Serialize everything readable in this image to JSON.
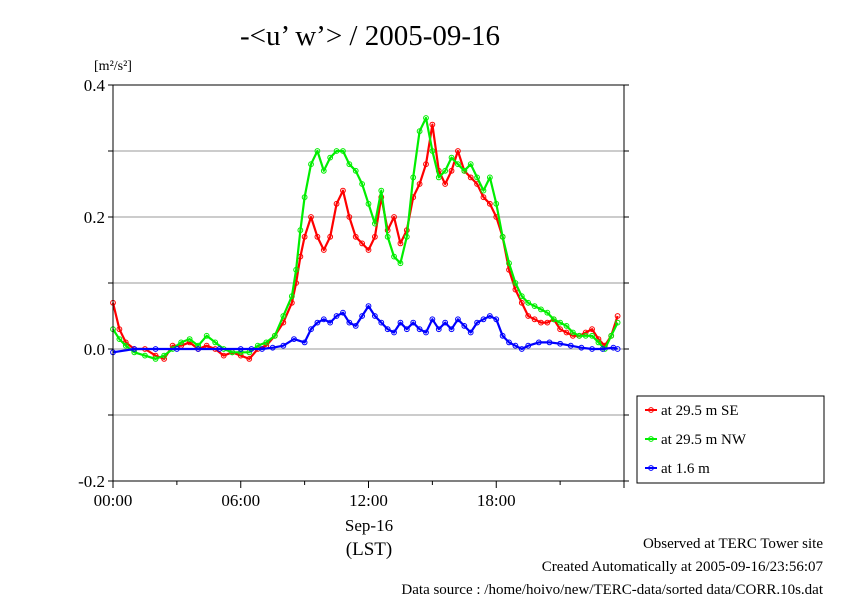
{
  "chart_data": {
    "type": "line",
    "title": "-<u’ w’> / 2005-09-16",
    "ylabel": "[m²/s²]",
    "xlabel": "Sep-16",
    "xlabel2": "(LST)",
    "ylim": [
      -0.2,
      0.4
    ],
    "xlim": [
      0,
      24
    ],
    "yticks": [
      -0.2,
      0.0,
      0.2,
      0.4
    ],
    "ytick_labels": [
      "-0.2",
      "0.0",
      "0.2",
      "0.4"
    ],
    "xticks": [
      0,
      6,
      12,
      18
    ],
    "xtick_labels": [
      "00:00",
      "06:00",
      "12:00",
      "18:00"
    ],
    "grid": "horizontal",
    "legend": "right",
    "series": [
      {
        "name": "at 29.5 m SE",
        "color": "#ff0000",
        "x": [
          0,
          0.3,
          0.6,
          1,
          1.5,
          2,
          2.4,
          2.8,
          3.2,
          3.6,
          4,
          4.4,
          4.8,
          5.2,
          5.6,
          6,
          6.4,
          6.8,
          7.2,
          7.6,
          8,
          8.4,
          8.6,
          8.8,
          9,
          9.3,
          9.6,
          9.9,
          10.2,
          10.5,
          10.8,
          11.1,
          11.4,
          11.7,
          12,
          12.3,
          12.6,
          12.9,
          13.2,
          13.5,
          13.8,
          14.1,
          14.4,
          14.7,
          15,
          15.3,
          15.6,
          15.9,
          16.2,
          16.5,
          16.8,
          17.1,
          17.4,
          17.7,
          18,
          18.3,
          18.6,
          18.9,
          19.2,
          19.5,
          19.8,
          20.1,
          20.4,
          20.7,
          21,
          21.3,
          21.6,
          21.9,
          22.2,
          22.5,
          22.8,
          23.1,
          23.4,
          23.7
        ],
        "values": [
          0.07,
          0.03,
          0.01,
          0.0,
          0.0,
          -0.01,
          -0.015,
          0.005,
          0.005,
          0.01,
          0.0,
          0.005,
          0.0,
          -0.01,
          -0.005,
          -0.01,
          -0.015,
          0.0,
          0.005,
          0.02,
          0.04,
          0.07,
          0.1,
          0.14,
          0.17,
          0.2,
          0.17,
          0.15,
          0.17,
          0.22,
          0.24,
          0.2,
          0.17,
          0.16,
          0.15,
          0.17,
          0.23,
          0.18,
          0.2,
          0.16,
          0.18,
          0.23,
          0.25,
          0.28,
          0.34,
          0.27,
          0.25,
          0.27,
          0.3,
          0.27,
          0.26,
          0.25,
          0.23,
          0.22,
          0.2,
          0.17,
          0.12,
          0.09,
          0.07,
          0.05,
          0.045,
          0.04,
          0.04,
          0.045,
          0.03,
          0.025,
          0.02,
          0.02,
          0.025,
          0.03,
          0.015,
          0.005,
          0.02,
          0.05
        ]
      },
      {
        "name": "at 29.5 m NW",
        "color": "#00ee00",
        "x": [
          0,
          0.3,
          0.6,
          1,
          1.5,
          2,
          2.4,
          2.8,
          3.2,
          3.6,
          4,
          4.4,
          4.8,
          5.2,
          5.6,
          6,
          6.4,
          6.8,
          7.2,
          7.6,
          8,
          8.4,
          8.6,
          8.8,
          9,
          9.3,
          9.6,
          9.9,
          10.2,
          10.5,
          10.8,
          11.1,
          11.4,
          11.7,
          12,
          12.3,
          12.6,
          12.9,
          13.2,
          13.5,
          13.8,
          14.1,
          14.4,
          14.7,
          15,
          15.3,
          15.6,
          15.9,
          16.2,
          16.5,
          16.8,
          17.1,
          17.4,
          17.7,
          18,
          18.3,
          18.6,
          18.9,
          19.2,
          19.5,
          19.8,
          20.1,
          20.4,
          20.7,
          21,
          21.3,
          21.6,
          21.9,
          22.2,
          22.5,
          22.8,
          23.1,
          23.4,
          23.7
        ],
        "values": [
          0.03,
          0.015,
          0.005,
          -0.005,
          -0.01,
          -0.015,
          -0.01,
          0.0,
          0.01,
          0.015,
          0.005,
          0.02,
          0.01,
          0.0,
          -0.005,
          -0.005,
          -0.005,
          0.005,
          0.01,
          0.02,
          0.05,
          0.08,
          0.12,
          0.18,
          0.23,
          0.28,
          0.3,
          0.27,
          0.29,
          0.3,
          0.3,
          0.28,
          0.27,
          0.25,
          0.22,
          0.19,
          0.24,
          0.17,
          0.14,
          0.13,
          0.17,
          0.26,
          0.33,
          0.35,
          0.3,
          0.26,
          0.27,
          0.29,
          0.28,
          0.27,
          0.28,
          0.26,
          0.24,
          0.26,
          0.22,
          0.17,
          0.13,
          0.1,
          0.08,
          0.07,
          0.065,
          0.06,
          0.055,
          0.045,
          0.04,
          0.035,
          0.025,
          0.02,
          0.02,
          0.02,
          0.01,
          0.0,
          0.02,
          0.04
        ]
      },
      {
        "name": "at 1.6 m",
        "color": "#0000ff",
        "x": [
          0,
          1,
          2,
          3,
          4,
          5,
          6,
          6.5,
          7,
          7.5,
          8,
          8.5,
          9,
          9.3,
          9.6,
          9.9,
          10.2,
          10.5,
          10.8,
          11.1,
          11.4,
          11.7,
          12,
          12.3,
          12.6,
          12.9,
          13.2,
          13.5,
          13.8,
          14.1,
          14.4,
          14.7,
          15,
          15.3,
          15.6,
          15.9,
          16.2,
          16.5,
          16.8,
          17.1,
          17.4,
          17.7,
          18,
          18.3,
          18.6,
          18.9,
          19.2,
          19.5,
          20,
          20.5,
          21,
          21.5,
          22,
          22.5,
          23,
          23.5,
          23.7
        ],
        "values": [
          -0.005,
          0.0,
          0.0,
          0.0,
          0.0,
          0.0,
          0.0,
          0.0,
          0.0,
          0.002,
          0.005,
          0.015,
          0.01,
          0.03,
          0.04,
          0.045,
          0.04,
          0.05,
          0.055,
          0.04,
          0.035,
          0.05,
          0.065,
          0.05,
          0.04,
          0.03,
          0.025,
          0.04,
          0.03,
          0.04,
          0.03,
          0.025,
          0.045,
          0.03,
          0.04,
          0.03,
          0.045,
          0.035,
          0.025,
          0.04,
          0.045,
          0.05,
          0.045,
          0.02,
          0.01,
          0.005,
          0.0,
          0.005,
          0.01,
          0.01,
          0.008,
          0.005,
          0.002,
          0.0,
          0.0,
          0.002,
          0.0
        ]
      }
    ]
  },
  "footer": {
    "line1": "Observed at TERC Tower site",
    "line2": "Created Automatically at 2005-09-16/23:56:07",
    "line3": "Data source : /home/hoivo/new/TERC-data/sorted  data/CORR.10s.dat"
  }
}
